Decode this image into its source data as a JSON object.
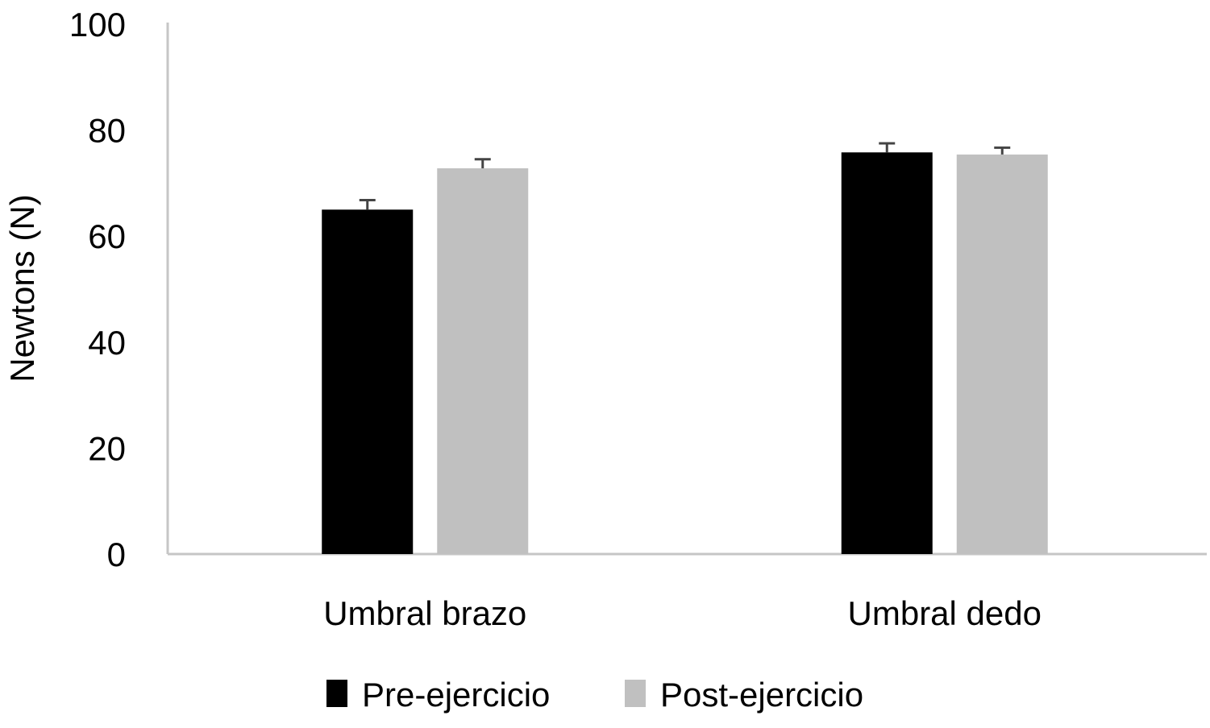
{
  "chart_data": {
    "type": "bar",
    "title": "",
    "xlabel": "",
    "ylabel": "Newtons (N)",
    "ylim": [
      0,
      100
    ],
    "yticks": [
      "0",
      "20",
      "40",
      "60",
      "80",
      "100"
    ],
    "categories": [
      "Umbral brazo",
      "Umbral dedo"
    ],
    "series": [
      {
        "name": "Pre-ejercicio",
        "color": "#000000",
        "values": [
          65,
          75.8
        ],
        "errors": [
          1.8,
          1.7
        ]
      },
      {
        "name": "Post-ejercicio",
        "color": "#c0c0c0",
        "values": [
          72.8,
          75.4
        ],
        "errors": [
          1.7,
          1.3
        ]
      }
    ],
    "grid": false,
    "legend_position": "bottom",
    "error_bar_color": "#444444",
    "axis_color": "#c6c6c6"
  }
}
